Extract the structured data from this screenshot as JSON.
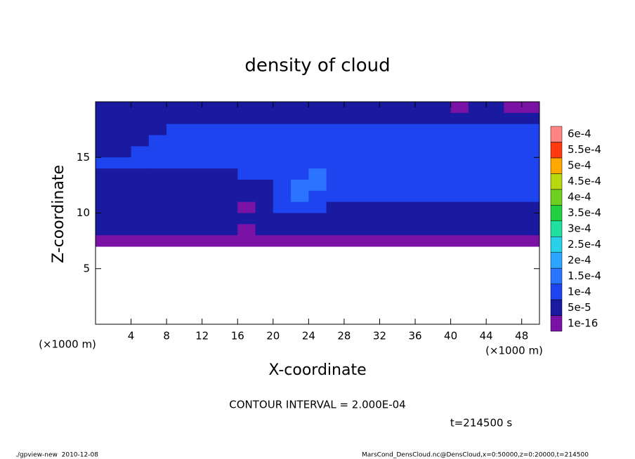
{
  "chart_data": {
    "type": "contour",
    "title": "density of cloud",
    "xlabel": "X-coordinate",
    "ylabel": "Z-coordinate",
    "x_unit": "(×1000 m)",
    "y_unit": "(×1000 m)",
    "annotations": [
      "CONTOUR INTERVAL = 2.000E-04",
      "t=214500 s"
    ],
    "footer_left": "./gpview-new  2010-12-08",
    "footer_right": "MarsCond_DensCloud.nc@DensCloud,x=0:50000,z=0:20000,t=214500",
    "xlim": [
      0,
      50
    ],
    "ylim": [
      0,
      20
    ],
    "xticks": [
      4,
      8,
      12,
      16,
      20,
      24,
      28,
      32,
      36,
      40,
      44,
      48
    ],
    "yticks": [
      5,
      10,
      15
    ],
    "levels": [
      {
        "value": 1e-16,
        "label": "1e-16"
      },
      {
        "value": 5e-05,
        "label": "5e-5"
      },
      {
        "value": 0.0001,
        "label": "1e-4"
      },
      {
        "value": 0.00015,
        "label": "1.5e-4"
      },
      {
        "value": 0.0002,
        "label": "2e-4"
      },
      {
        "value": 0.00025,
        "label": "2.5e-4"
      },
      {
        "value": 0.0003,
        "label": "3e-4"
      },
      {
        "value": 0.00035,
        "label": "3.5e-4"
      },
      {
        "value": 0.0004,
        "label": "4e-4"
      },
      {
        "value": 0.00045,
        "label": "4.5e-4"
      },
      {
        "value": 0.0005,
        "label": "5e-4"
      },
      {
        "value": 0.00055,
        "label": "5.5e-4"
      },
      {
        "value": 0.0006,
        "label": "6e-4"
      }
    ],
    "colors": [
      "#7a12a6",
      "#1a1aa0",
      "#1e44f0",
      "#2a74ff",
      "#2aa4ff",
      "#28d0e8",
      "#20e0a0",
      "#20d040",
      "#70d020",
      "#b8d810",
      "#ffa800",
      "#ff3a10",
      "#ff8484"
    ],
    "x": [
      1,
      3,
      5,
      7,
      9,
      11,
      13,
      15,
      17,
      19,
      21,
      23,
      25,
      27,
      29,
      31,
      33,
      35,
      37,
      39,
      41,
      43,
      45,
      47,
      49
    ],
    "z": [
      19.5,
      18.5,
      17.5,
      16.5,
      15.5,
      14.5,
      13.5,
      12.5,
      11.5,
      10.5,
      9.5,
      8.5,
      7.5,
      6.5,
      5.5,
      4.5,
      3.5,
      2.5,
      1.5,
      0.5
    ],
    "values": [
      [
        6e-05,
        6e-05,
        6e-05,
        6e-05,
        6e-05,
        6e-05,
        6e-05,
        6e-05,
        6e-05,
        6e-05,
        6e-05,
        6e-05,
        6e-05,
        6e-05,
        6e-05,
        6e-05,
        6e-05,
        6e-05,
        6e-05,
        6e-05,
        4e-05,
        6e-05,
        6e-05,
        3e-05,
        3e-05
      ],
      [
        7e-05,
        7e-05,
        9e-05,
        9e-05,
        9e-05,
        9e-05,
        9e-05,
        9e-05,
        9e-05,
        9e-05,
        9e-05,
        9e-05,
        9e-05,
        9e-05,
        9e-05,
        9e-05,
        9e-05,
        9e-05,
        9e-05,
        9e-05,
        9e-05,
        9e-05,
        9e-05,
        9e-05,
        9e-05
      ],
      [
        7e-05,
        7e-05,
        7e-05,
        7e-05,
        0.00011,
        0.00011,
        0.00011,
        0.00011,
        0.00011,
        0.00011,
        0.00011,
        0.00011,
        0.00011,
        0.00011,
        0.00011,
        0.00011,
        0.00011,
        0.00011,
        0.00011,
        0.00011,
        0.00011,
        0.00011,
        0.00011,
        0.00011,
        0.00011
      ],
      [
        6e-05,
        6e-05,
        7e-05,
        0.0001,
        0.00012,
        0.00012,
        0.00012,
        0.00012,
        0.00012,
        0.00012,
        0.00012,
        0.00012,
        0.00012,
        0.00012,
        0.00012,
        0.00012,
        0.00012,
        0.00012,
        0.00012,
        0.00012,
        0.00012,
        0.00012,
        0.00012,
        0.00012,
        0.00012
      ],
      [
        9e-05,
        9e-05,
        0.00011,
        0.00011,
        0.00011,
        0.00012,
        0.00012,
        0.00012,
        0.00012,
        0.00012,
        0.00012,
        0.00012,
        0.00012,
        0.00012,
        0.00012,
        0.00012,
        0.00012,
        0.00012,
        0.00012,
        0.00012,
        0.00012,
        0.00012,
        0.00012,
        0.00012,
        0.00012
      ],
      [
        0.0001,
        0.0001,
        0.0001,
        0.0001,
        0.0001,
        0.0001,
        0.0001,
        0.0001,
        0.00012,
        0.00012,
        0.00012,
        0.00012,
        0.00012,
        0.00012,
        0.00012,
        0.00012,
        0.00012,
        0.00012,
        0.00012,
        0.00012,
        0.00012,
        0.00012,
        0.00012,
        0.00012,
        0.00012
      ],
      [
        9e-05,
        9e-05,
        9e-05,
        9e-05,
        9e-05,
        9e-05,
        9e-05,
        9e-05,
        0.0001,
        0.0001,
        0.0001,
        0.00011,
        0.00016,
        0.00011,
        0.00011,
        0.00011,
        0.00011,
        0.00011,
        0.00011,
        0.00011,
        0.00011,
        0.00011,
        0.00011,
        0.00011,
        0.00011
      ],
      [
        8e-05,
        8e-05,
        8e-05,
        8e-05,
        8e-05,
        8e-05,
        8e-05,
        8e-05,
        8e-05,
        9e-05,
        0.00011,
        0.00017,
        0.00016,
        0.00012,
        0.00011,
        0.00011,
        0.00011,
        0.00011,
        0.00011,
        0.00011,
        0.00011,
        0.00011,
        0.00011,
        0.00011,
        0.00011
      ],
      [
        8e-05,
        8e-05,
        8e-05,
        8e-05,
        8e-05,
        8e-05,
        8e-05,
        8e-05,
        7e-05,
        9e-05,
        0.00013,
        0.00015,
        0.00014,
        0.00011,
        0.0001,
        0.0001,
        0.0001,
        0.0001,
        0.0001,
        0.0001,
        0.0001,
        0.0001,
        0.0001,
        0.0001,
        0.0001
      ],
      [
        7e-05,
        7e-05,
        7e-05,
        7e-05,
        7e-05,
        7e-05,
        7e-05,
        7e-05,
        4e-05,
        8e-05,
        0.00011,
        0.00013,
        0.0001,
        9e-05,
        9e-05,
        9e-05,
        9e-05,
        9e-05,
        9e-05,
        9e-05,
        9e-05,
        9e-05,
        9e-05,
        9e-05,
        9e-05
      ],
      [
        6e-05,
        6e-05,
        6e-05,
        6e-05,
        6e-05,
        6e-05,
        6e-05,
        6e-05,
        6e-05,
        6e-05,
        6e-05,
        6e-05,
        6e-05,
        6e-05,
        6e-05,
        6e-05,
        6e-05,
        6e-05,
        6e-05,
        6e-05,
        6e-05,
        6e-05,
        6e-05,
        6e-05,
        6e-05
      ],
      [
        5.5e-05,
        5.5e-05,
        5.5e-05,
        5.5e-05,
        5.5e-05,
        5.5e-05,
        5.5e-05,
        5.5e-05,
        3e-05,
        5.5e-05,
        5.5e-05,
        5.5e-05,
        5.5e-05,
        5.5e-05,
        5.5e-05,
        5.5e-05,
        5.5e-05,
        5.5e-05,
        5.5e-05,
        5.5e-05,
        5.5e-05,
        5.5e-05,
        5.5e-05,
        5.5e-05,
        5.5e-05
      ],
      [
        3e-05,
        3e-05,
        3e-05,
        3e-05,
        3e-05,
        3e-05,
        3e-05,
        3e-05,
        3e-05,
        3e-05,
        3e-05,
        3e-05,
        3e-05,
        3e-05,
        3e-05,
        3e-05,
        3e-05,
        3e-05,
        3e-05,
        3e-05,
        3e-05,
        3e-05,
        3e-05,
        3e-05,
        3e-05
      ],
      [
        null,
        null,
        null,
        null,
        null,
        null,
        null,
        null,
        null,
        null,
        null,
        null,
        null,
        null,
        null,
        null,
        null,
        null,
        null,
        null,
        null,
        null,
        null,
        null,
        null
      ],
      [
        null,
        null,
        null,
        null,
        null,
        null,
        null,
        null,
        null,
        null,
        null,
        null,
        null,
        null,
        null,
        null,
        null,
        null,
        null,
        null,
        null,
        null,
        null,
        null,
        null
      ],
      [
        null,
        null,
        null,
        null,
        null,
        null,
        null,
        null,
        null,
        null,
        null,
        null,
        null,
        null,
        null,
        null,
        null,
        null,
        null,
        null,
        null,
        null,
        null,
        null,
        null
      ],
      [
        null,
        null,
        null,
        null,
        null,
        null,
        null,
        null,
        null,
        null,
        null,
        null,
        null,
        null,
        null,
        null,
        null,
        null,
        null,
        null,
        null,
        null,
        null,
        null,
        null
      ],
      [
        null,
        null,
        null,
        null,
        null,
        null,
        null,
        null,
        null,
        null,
        null,
        null,
        null,
        null,
        null,
        null,
        null,
        null,
        null,
        null,
        null,
        null,
        null,
        null,
        null
      ],
      [
        null,
        null,
        null,
        null,
        null,
        null,
        null,
        null,
        null,
        null,
        null,
        null,
        null,
        null,
        null,
        null,
        null,
        null,
        null,
        null,
        null,
        null,
        null,
        null,
        null
      ],
      [
        null,
        null,
        null,
        null,
        null,
        null,
        null,
        null,
        null,
        null,
        null,
        null,
        null,
        null,
        null,
        null,
        null,
        null,
        null,
        null,
        null,
        null,
        null,
        null,
        null
      ]
    ]
  }
}
